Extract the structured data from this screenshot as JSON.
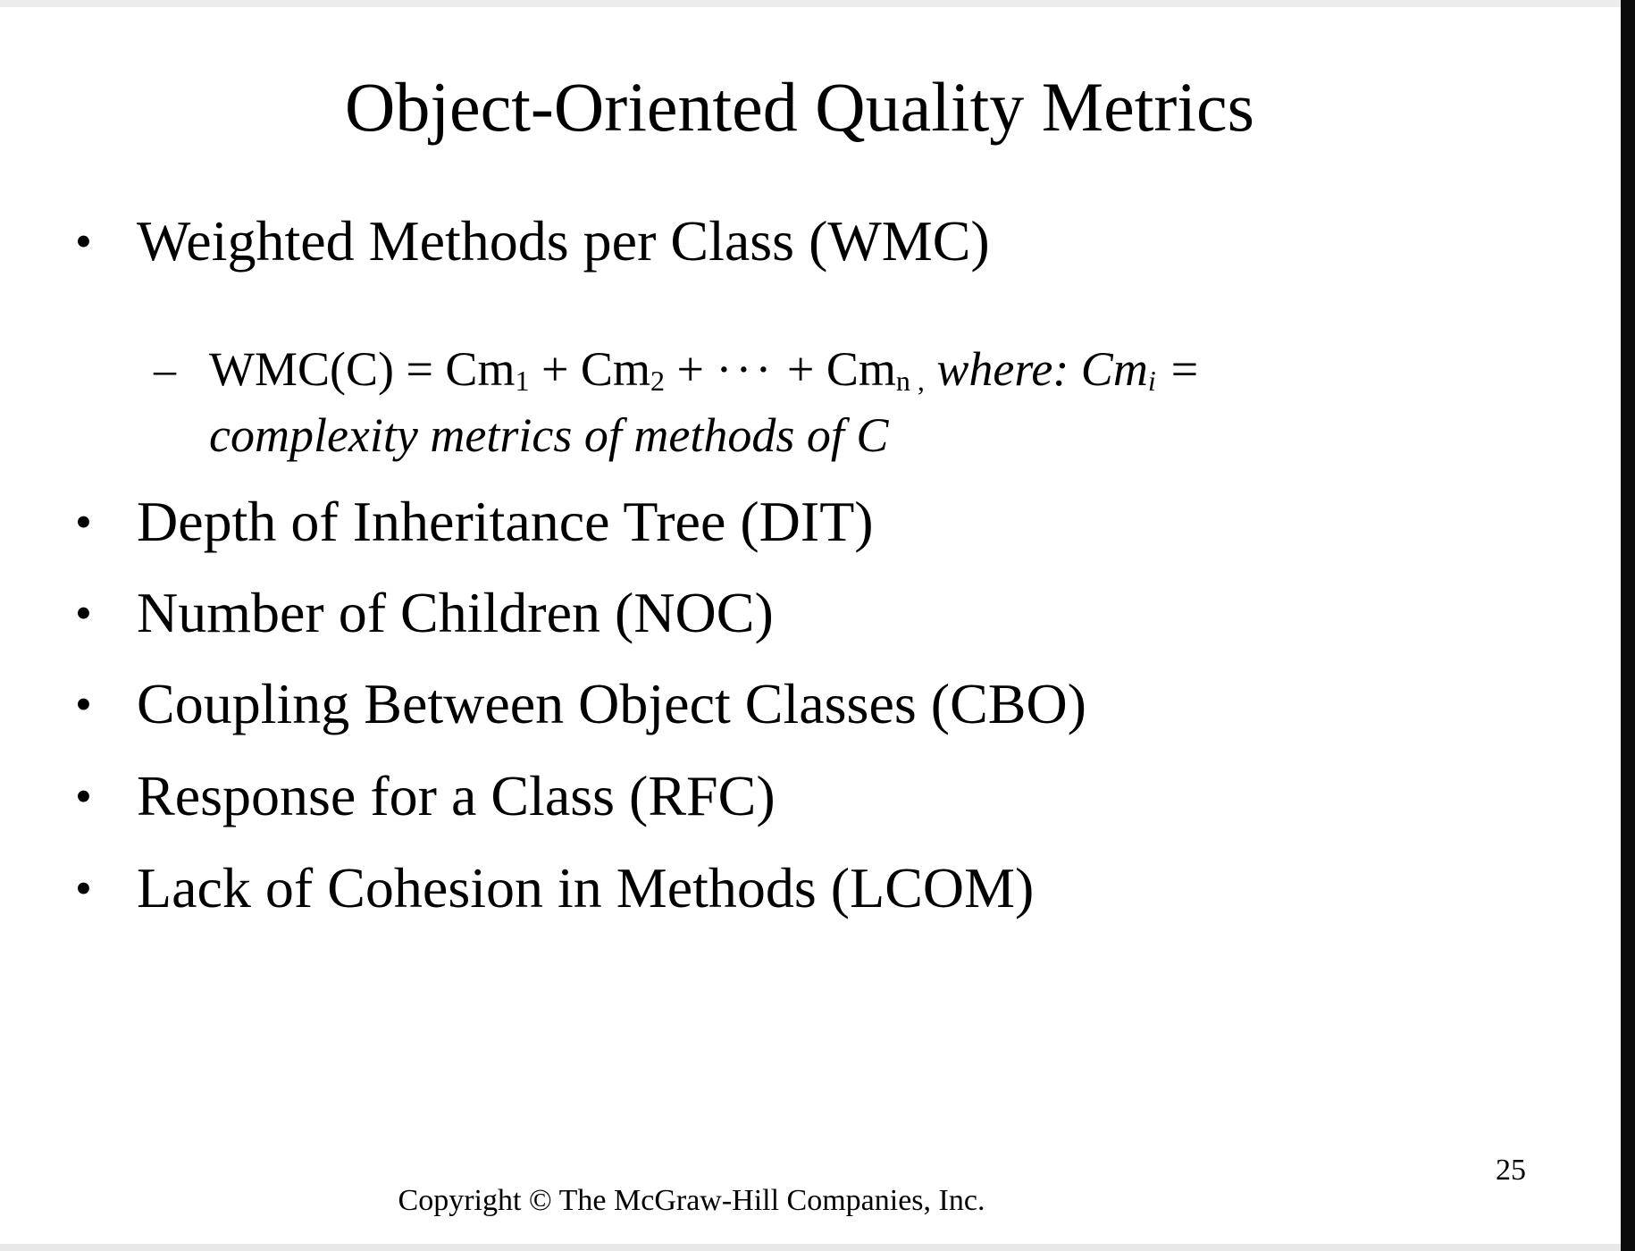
{
  "slide": {
    "title": "Object-Oriented Quality Metrics",
    "bullets": [
      {
        "label": "Weighted Methods per Class (WMC)"
      },
      {
        "label": "Depth of Inheritance Tree (DIT)"
      },
      {
        "label": "Number of Children (NOC)"
      },
      {
        "label": "Coupling Between Object Classes (CBO)"
      },
      {
        "label": "Response for a Class (RFC)"
      },
      {
        "label": "Lack of Cohesion in Methods (LCOM)"
      }
    ],
    "bullet_glyph": "•",
    "sub_item": {
      "dash": "–",
      "formula_prefix": "WMC(C) = Cm",
      "sub_1": "1",
      "plus_1": " + Cm",
      "sub_2": "2",
      "plus_dots": " + ",
      "dots": "···",
      "plus_2": " + Cm",
      "sub_n": "n ,",
      "where_text": " where: Cm",
      "sub_i": "i",
      "equals": " =",
      "line2": "complexity metrics of methods of C"
    },
    "page_number": "25",
    "copyright": "Copyright © The McGraw-Hill Companies, Inc."
  }
}
